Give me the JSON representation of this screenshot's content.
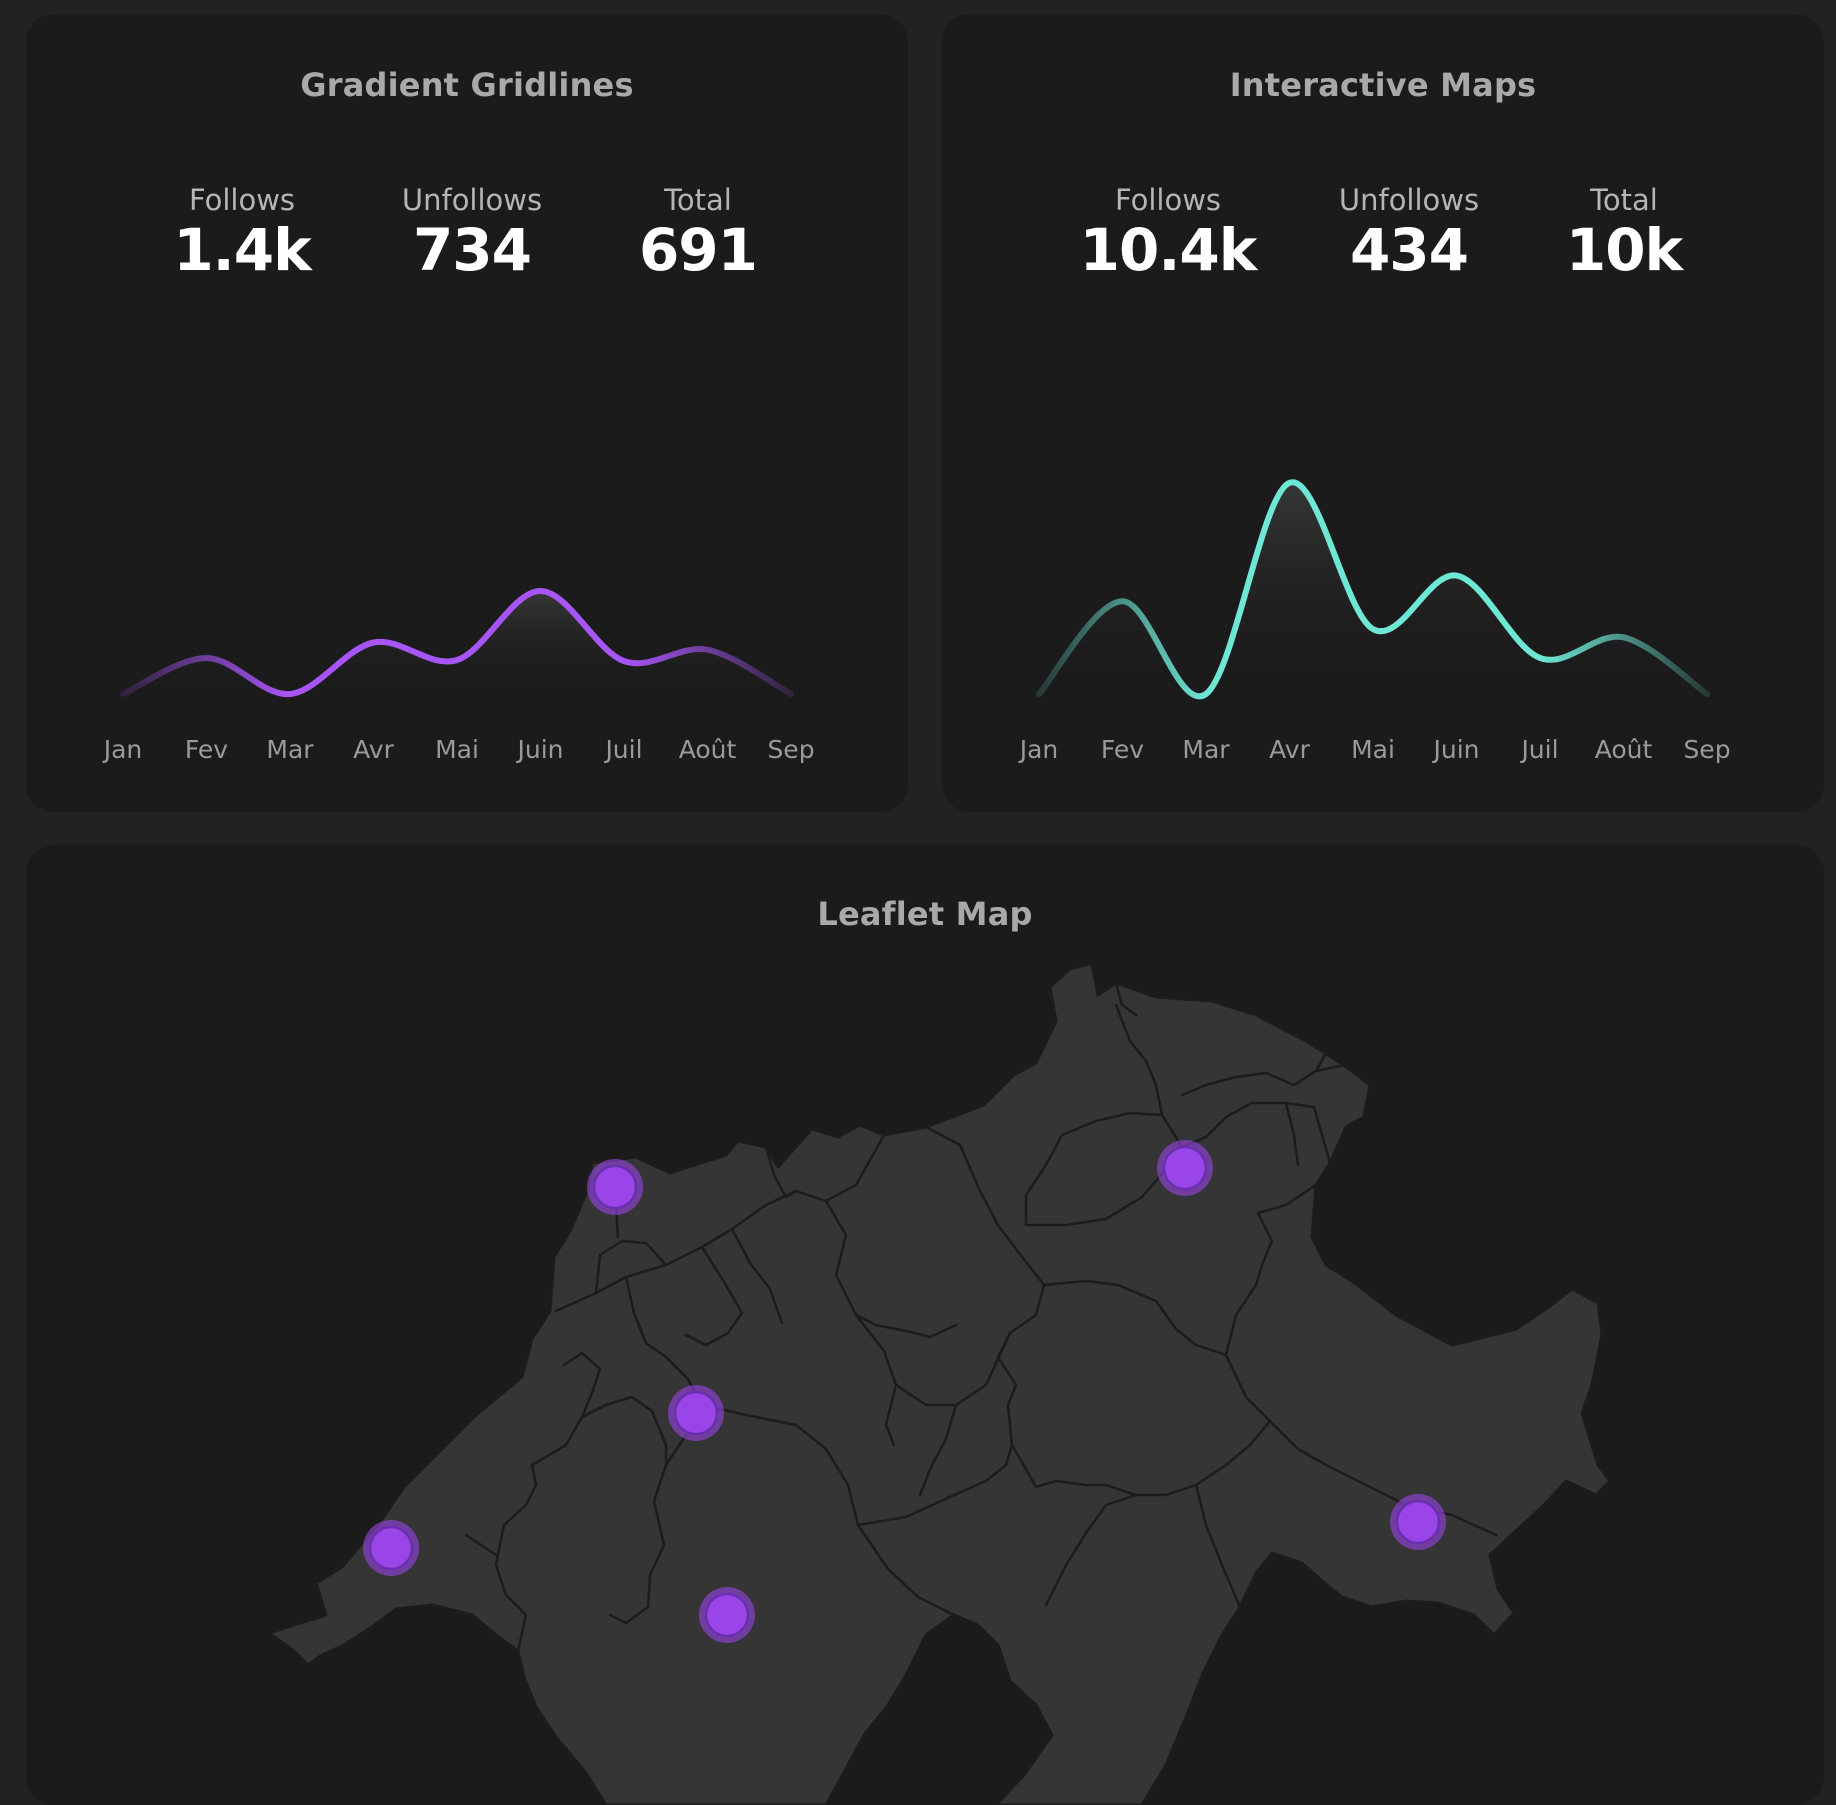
{
  "cards": [
    {
      "title": "Gradient Gridlines",
      "stats": [
        {
          "label": "Follows",
          "value": "1.4k"
        },
        {
          "label": "Unfollows",
          "value": "734"
        },
        {
          "label": "Total",
          "value": "691"
        }
      ]
    },
    {
      "title": "Interactive Maps",
      "stats": [
        {
          "label": "Follows",
          "value": "10.4k"
        },
        {
          "label": "Unfollows",
          "value": "434"
        },
        {
          "label": "Total",
          "value": "10k"
        }
      ]
    }
  ],
  "map": {
    "title": "Leaflet Map",
    "marker_color": "#9945e8",
    "marker_count": 6
  },
  "chart_data": [
    {
      "type": "line",
      "categories": [
        "Jan",
        "Fev",
        "Mar",
        "Avr",
        "Mai",
        "Juin",
        "Juil",
        "Août",
        "Sep"
      ],
      "series": [
        {
          "values": [
            0,
            35,
            0,
            50,
            33,
            100,
            32,
            43,
            0
          ]
        }
      ],
      "ylim": [
        -10,
        205
      ],
      "grid": true,
      "color": "#a855f7"
    },
    {
      "type": "line",
      "categories": [
        "Jan",
        "Fev",
        "Mar",
        "Avr",
        "Mai",
        "Juin",
        "Juil",
        "Août",
        "Sep"
      ],
      "series": [
        {
          "values": [
            0,
            90,
            0,
            205,
            63,
            115,
            35,
            55,
            0
          ]
        }
      ],
      "ylim": [
        -10,
        205
      ],
      "grid": true,
      "color": "#6ee7d5"
    }
  ]
}
